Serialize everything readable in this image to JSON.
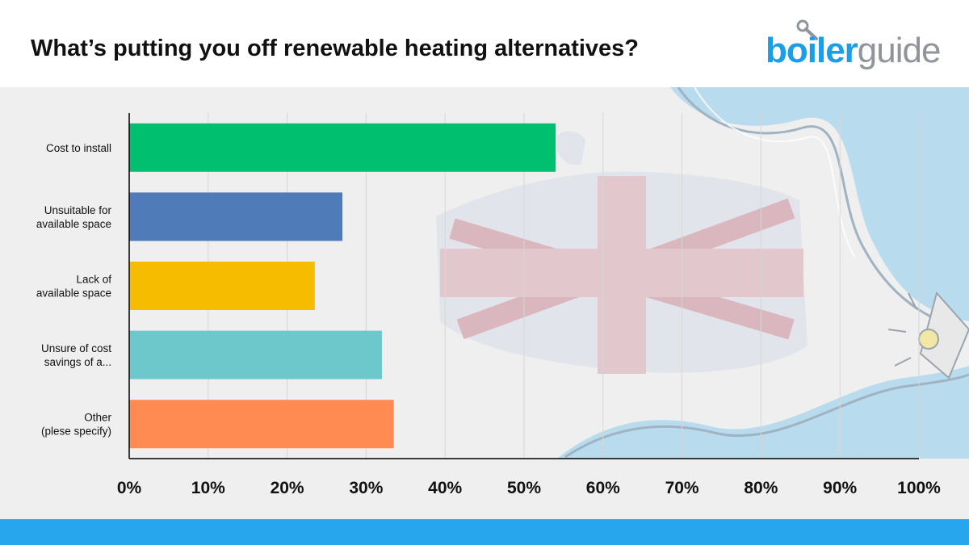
{
  "header": {
    "title": "What’s putting you off renewable heating alternatives?",
    "logo_part1": "boiler",
    "logo_part2": "guide"
  },
  "colors": {
    "green": "#00c070",
    "blue": "#4f7bb8",
    "yellow": "#f6bd00",
    "teal": "#6dc8cc",
    "orange": "#ff8a52",
    "bottom_bar": "#27a6ee",
    "logo_blue": "#1b9ee6",
    "logo_grey": "#8f959a"
  },
  "decorations": [
    "uk-flag-watermark",
    "radiator-pipe-illustration",
    "lightbulb-icon"
  ],
  "chart_data": {
    "type": "bar",
    "orientation": "horizontal",
    "title": "What’s putting you off renewable heating alternatives?",
    "xlabel": "",
    "ylabel": "",
    "xlim": [
      0,
      100
    ],
    "grid": true,
    "x_tick_labels": [
      "0%",
      "10%",
      "20%",
      "30%",
      "40%",
      "50%",
      "60%",
      "70%",
      "80%",
      "90%",
      "100%"
    ],
    "categories": [
      [
        "Cost to install"
      ],
      [
        "Unsuitable for",
        "available space"
      ],
      [
        "Lack of",
        "available space"
      ],
      [
        "Unsure of cost",
        "savings of a..."
      ],
      [
        "Other",
        "(plese specify)"
      ]
    ],
    "values": [
      54,
      27,
      23.5,
      32,
      33.5
    ],
    "bar_colors": [
      "#00c070",
      "#4f7bb8",
      "#f6bd00",
      "#6dc8cc",
      "#ff8a52"
    ]
  }
}
